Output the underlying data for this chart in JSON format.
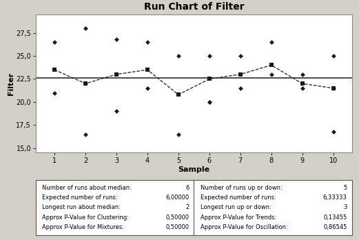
{
  "title": "Run Chart of Filter",
  "xlabel": "Sample",
  "ylabel": "Filter",
  "x": [
    1,
    2,
    3,
    4,
    5,
    6,
    7,
    8,
    9,
    10
  ],
  "scatter_points": [
    [
      26.5,
      21.0
    ],
    [
      16.5,
      28.0,
      22.0
    ],
    [
      26.8,
      19.0
    ],
    [
      26.5,
      21.5
    ],
    [
      25.0,
      16.5
    ],
    [
      25.0,
      20.0,
      20.0
    ],
    [
      25.0,
      21.5
    ],
    [
      26.5,
      23.0
    ],
    [
      23.0,
      21.5
    ],
    [
      25.0,
      16.8,
      21.5
    ]
  ],
  "line_y": [
    23.5,
    22.0,
    23.0,
    23.5,
    20.8,
    22.5,
    23.0,
    24.0,
    22.0,
    21.5
  ],
  "median_line": 22.6,
  "ylim": [
    14.5,
    29.5
  ],
  "yticks": [
    15.0,
    17.5,
    20.0,
    22.5,
    25.0,
    27.5
  ],
  "ytick_labels": [
    "15,0",
    "17,5",
    "20,0",
    "22,5",
    "25,0",
    "27,5"
  ],
  "xticks": [
    1,
    2,
    3,
    4,
    5,
    6,
    7,
    8,
    9,
    10
  ],
  "bg_color": "#d4d0c8",
  "plot_bg_color": "#ffffff",
  "table_bg_color": "#ffffff",
  "line_color": "#1a1a1a",
  "scatter_color": "#1a1a1a",
  "median_color": "#1a1a1a",
  "left_table": [
    [
      "Number of runs about median:",
      "6"
    ],
    [
      "Expected number of runs:",
      "6,00000"
    ],
    [
      "Longest run about median:",
      "2"
    ],
    [
      "Approx P-Value for Clustering:",
      "0,50000"
    ],
    [
      "Approx P-Value for Mixtures:",
      "0,50000"
    ]
  ],
  "right_table": [
    [
      "Number of runs up or down:",
      "5"
    ],
    [
      "Expected number of runs:",
      "6,33333"
    ],
    [
      "Longest run up or down:",
      "3"
    ],
    [
      "Approx P-Value for Trends:",
      "0,13455"
    ],
    [
      "Approx P-Value for Oscillation:",
      "0,86545"
    ]
  ]
}
